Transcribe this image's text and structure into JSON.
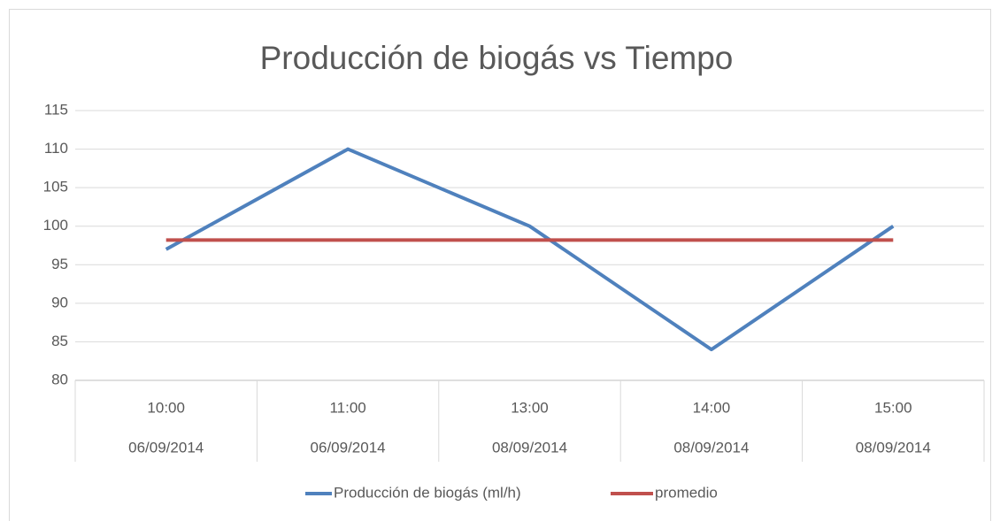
{
  "chart_data": {
    "type": "line",
    "title": "Producción de biogás vs Tiempo",
    "categories": [
      [
        "10:00",
        "06/09/2014"
      ],
      [
        "11:00",
        "06/09/2014"
      ],
      [
        "13:00",
        "08/09/2014"
      ],
      [
        "14:00",
        "08/09/2014"
      ],
      [
        "15:00",
        "08/09/2014"
      ]
    ],
    "series": [
      {
        "name": "Producción de biogás (ml/h)",
        "color": "#4f81bd",
        "values": [
          97,
          110,
          100,
          84,
          100
        ]
      },
      {
        "name": "promedio",
        "color": "#c0504d",
        "values": [
          98.2,
          98.2,
          98.2,
          98.2,
          98.2
        ]
      }
    ],
    "ylim": [
      80,
      115
    ],
    "yticks": [
      80,
      85,
      90,
      95,
      100,
      105,
      110,
      115
    ],
    "grid": true,
    "legend": "bottom"
  }
}
